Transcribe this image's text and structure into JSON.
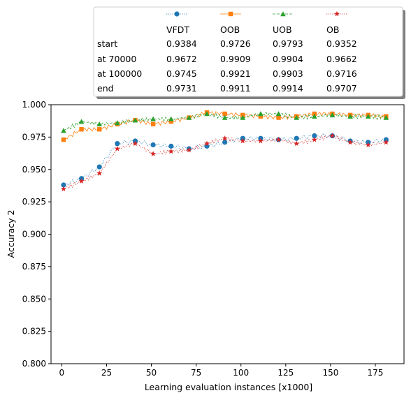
{
  "chart_data": {
    "type": "line",
    "title": "",
    "xlabel": "Learning evaluation instances [x1000]",
    "ylabel": "Accuracy 2",
    "xlim": [
      -6,
      191
    ],
    "ylim": [
      0.8,
      1.0
    ],
    "x_ticks": [
      0,
      25,
      50,
      75,
      100,
      125,
      150,
      175
    ],
    "y_ticks": [
      0.8,
      0.825,
      0.85,
      0.875,
      0.9,
      0.925,
      0.95,
      0.975,
      1.0
    ],
    "x_tick_labels": [
      "0",
      "25",
      "50",
      "75",
      "100",
      "125",
      "150",
      "175"
    ],
    "y_tick_labels": [
      "0.800",
      "0.825",
      "0.850",
      "0.875",
      "0.900",
      "0.925",
      "0.950",
      "0.975",
      "1.000"
    ],
    "grid": false,
    "legend_position": "top, above plot",
    "legend_table": {
      "row_labels": [
        "start",
        "at 70000",
        "at 100000",
        "end"
      ],
      "rows": [
        [
          "0.9384",
          "0.9726",
          "0.9793",
          "0.9352"
        ],
        [
          "0.9672",
          "0.9909",
          "0.9904",
          "0.9662"
        ],
        [
          "0.9745",
          "0.9921",
          "0.9903",
          "0.9716"
        ],
        [
          "0.9731",
          "0.9911",
          "0.9914",
          "0.9707"
        ]
      ]
    },
    "x": [
      1,
      11,
      21,
      31,
      41,
      51,
      61,
      71,
      81,
      91,
      101,
      111,
      121,
      131,
      141,
      151,
      161,
      171,
      181
    ],
    "series": [
      {
        "name": "VFDT",
        "color": "#1f77b4",
        "marker": "circle",
        "linestyle": "dotted",
        "values": [
          0.938,
          0.943,
          0.952,
          0.97,
          0.972,
          0.969,
          0.968,
          0.966,
          0.968,
          0.971,
          0.974,
          0.974,
          0.973,
          0.974,
          0.976,
          0.976,
          0.972,
          0.971,
          0.973
        ]
      },
      {
        "name": "OOB",
        "color": "#ff7f0e",
        "marker": "square",
        "linestyle": "solid",
        "values": [
          0.973,
          0.981,
          0.981,
          0.985,
          0.988,
          0.985,
          0.987,
          0.99,
          0.994,
          0.993,
          0.992,
          0.991,
          0.99,
          0.991,
          0.993,
          0.993,
          0.992,
          0.992,
          0.991
        ]
      },
      {
        "name": "UOB",
        "color": "#2ca02c",
        "marker": "triangle",
        "linestyle": "dashed",
        "values": [
          0.98,
          0.987,
          0.985,
          0.986,
          0.988,
          0.989,
          0.989,
          0.99,
          0.993,
          0.99,
          0.99,
          0.993,
          0.993,
          0.99,
          0.991,
          0.992,
          0.991,
          0.991,
          0.99
        ]
      },
      {
        "name": "OB",
        "color": "#d62728",
        "marker": "star",
        "linestyle": "dotted",
        "values": [
          0.935,
          0.941,
          0.947,
          0.966,
          0.97,
          0.962,
          0.964,
          0.965,
          0.97,
          0.974,
          0.972,
          0.972,
          0.973,
          0.97,
          0.973,
          0.976,
          0.971,
          0.969,
          0.971
        ]
      }
    ]
  }
}
